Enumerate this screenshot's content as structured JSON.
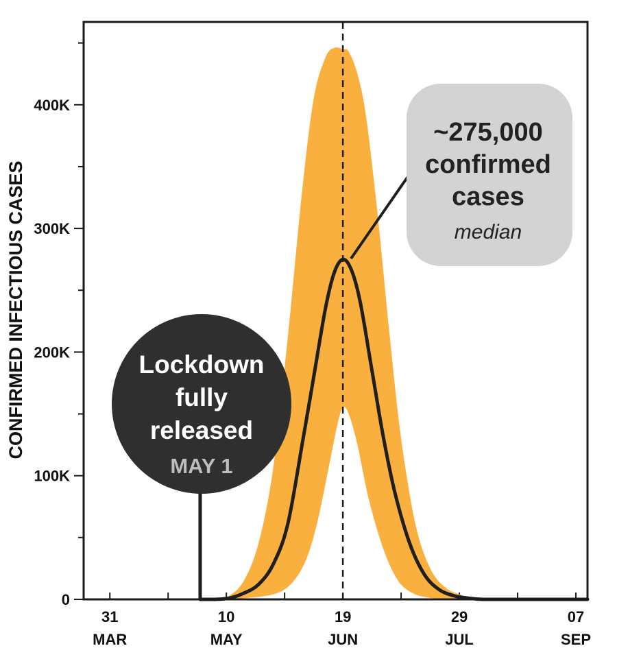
{
  "chart_data": {
    "type": "area",
    "ylabel": "CONFIRMED INFECTIOUS CASES",
    "xlabel": "",
    "y_ticks": [
      {
        "value": 0,
        "label": "0"
      },
      {
        "value": 100000,
        "label": "100K"
      },
      {
        "value": 200000,
        "label": "200K"
      },
      {
        "value": 300000,
        "label": "300K"
      },
      {
        "value": 400000,
        "label": "400K"
      }
    ],
    "x_ticks": [
      {
        "date": "2020-03-31",
        "day": "31",
        "month": "MAR"
      },
      {
        "date": "2020-05-10",
        "day": "10",
        "month": "MAY"
      },
      {
        "date": "2020-06-19",
        "day": "19",
        "month": "JUN"
      },
      {
        "date": "2020-07-29",
        "day": "29",
        "month": "JUL"
      },
      {
        "date": "2020-09-07",
        "day": "07",
        "month": "SEP"
      }
    ],
    "xlim": [
      "2020-03-22",
      "2020-09-11"
    ],
    "ylim": [
      0,
      467000
    ],
    "peak_date": "2020-06-19",
    "colors": {
      "band": "#f9b03e",
      "median": "#1f1f1f",
      "bubble": "#2f2f2f",
      "callout": "#d3d3d3"
    },
    "series": [
      {
        "kind": "median",
        "x": [
          "2020-05-01",
          "2020-05-06",
          "2020-05-11",
          "2020-05-16",
          "2020-05-21",
          "2020-05-26",
          "2020-05-31",
          "2020-06-05",
          "2020-06-09",
          "2020-06-13",
          "2020-06-16",
          "2020-06-19",
          "2020-06-22",
          "2020-06-25",
          "2020-06-29",
          "2020-07-03",
          "2020-07-07",
          "2020-07-12",
          "2020-07-17",
          "2020-07-22",
          "2020-07-27",
          "2020-08-01",
          "2020-08-06",
          "2020-08-11",
          "2020-08-16",
          "2020-08-21",
          "2020-08-26",
          "2020-08-31",
          "2020-09-05",
          "2020-09-11"
        ],
        "y": [
          0,
          0,
          1000,
          5000,
          12000,
          28000,
          60000,
          125000,
          180000,
          235000,
          264000,
          275000,
          266000,
          240000,
          185000,
          130000,
          85000,
          45000,
          20000,
          8000,
          3000,
          1000,
          0,
          0,
          0,
          0,
          0,
          0,
          0,
          0
        ]
      },
      {
        "kind": "upper",
        "x": [
          "2020-05-06",
          "2020-05-11",
          "2020-05-16",
          "2020-05-21",
          "2020-05-26",
          "2020-05-31",
          "2020-06-05",
          "2020-06-09",
          "2020-06-13",
          "2020-06-16",
          "2020-06-19",
          "2020-06-21",
          "2020-06-24",
          "2020-06-27",
          "2020-07-01",
          "2020-07-05",
          "2020-07-09",
          "2020-07-14",
          "2020-07-19",
          "2020-07-24",
          "2020-07-29",
          "2020-08-03",
          "2020-08-08",
          "2020-08-13"
        ],
        "y": [
          0,
          3000,
          15000,
          45000,
          105000,
          210000,
          330000,
          405000,
          438000,
          446000,
          445000,
          443000,
          425000,
          390000,
          310000,
          215000,
          130000,
          60000,
          25000,
          10000,
          4000,
          1500,
          500,
          0
        ]
      },
      {
        "kind": "lower",
        "x": [
          "2020-05-06",
          "2020-05-16",
          "2020-05-26",
          "2020-06-01",
          "2020-06-06",
          "2020-06-10",
          "2020-06-14",
          "2020-06-17",
          "2020-06-19",
          "2020-06-21",
          "2020-06-24",
          "2020-06-28",
          "2020-07-03",
          "2020-07-08",
          "2020-07-13",
          "2020-07-18",
          "2020-07-23",
          "2020-07-28",
          "2020-08-02",
          "2020-08-08",
          "2020-08-13"
        ],
        "y": [
          0,
          1000,
          4000,
          12000,
          30000,
          60000,
          105000,
          140000,
          155000,
          150000,
          125000,
          80000,
          40000,
          15000,
          5000,
          1500,
          500,
          0,
          0,
          0,
          0
        ]
      }
    ],
    "annotations": {
      "lockdown": {
        "date": "2020-05-01",
        "lines": [
          "Lockdown",
          "fully",
          "released"
        ],
        "sub": "MAY 1"
      },
      "peak_callout": {
        "value": 275000,
        "lines": [
          "~275,000",
          "confirmed",
          "cases"
        ],
        "sub": "median"
      }
    }
  }
}
